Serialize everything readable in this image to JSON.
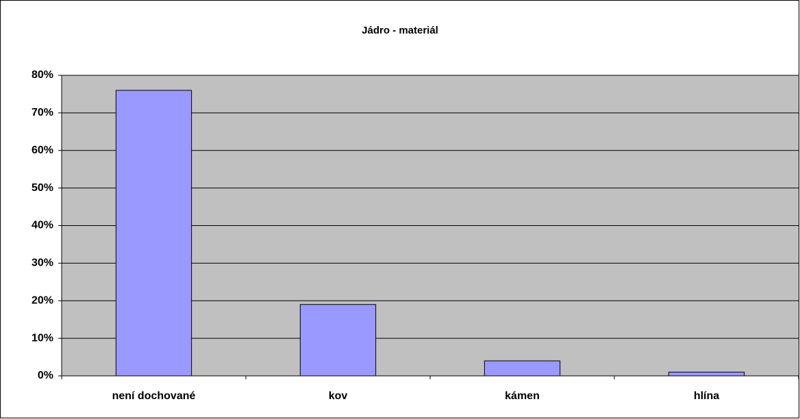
{
  "chart_data": {
    "type": "bar",
    "title": "Jádro -  materiál",
    "categories": [
      "není dochované",
      "kov",
      "kámen",
      "hlína"
    ],
    "values": [
      76,
      19,
      4,
      1
    ],
    "color": "#9999ff",
    "ylim": [
      0,
      80
    ],
    "yticks": [
      {
        "value": 0,
        "label": "0%"
      },
      {
        "value": 10,
        "label": "10%"
      },
      {
        "value": 20,
        "label": "20%"
      },
      {
        "value": 30,
        "label": "30%"
      },
      {
        "value": 40,
        "label": "40%"
      },
      {
        "value": 50,
        "label": "50%"
      },
      {
        "value": 60,
        "label": "60%"
      },
      {
        "value": 70,
        "label": "70%"
      },
      {
        "value": 80,
        "label": "80%"
      }
    ],
    "grid": true
  }
}
